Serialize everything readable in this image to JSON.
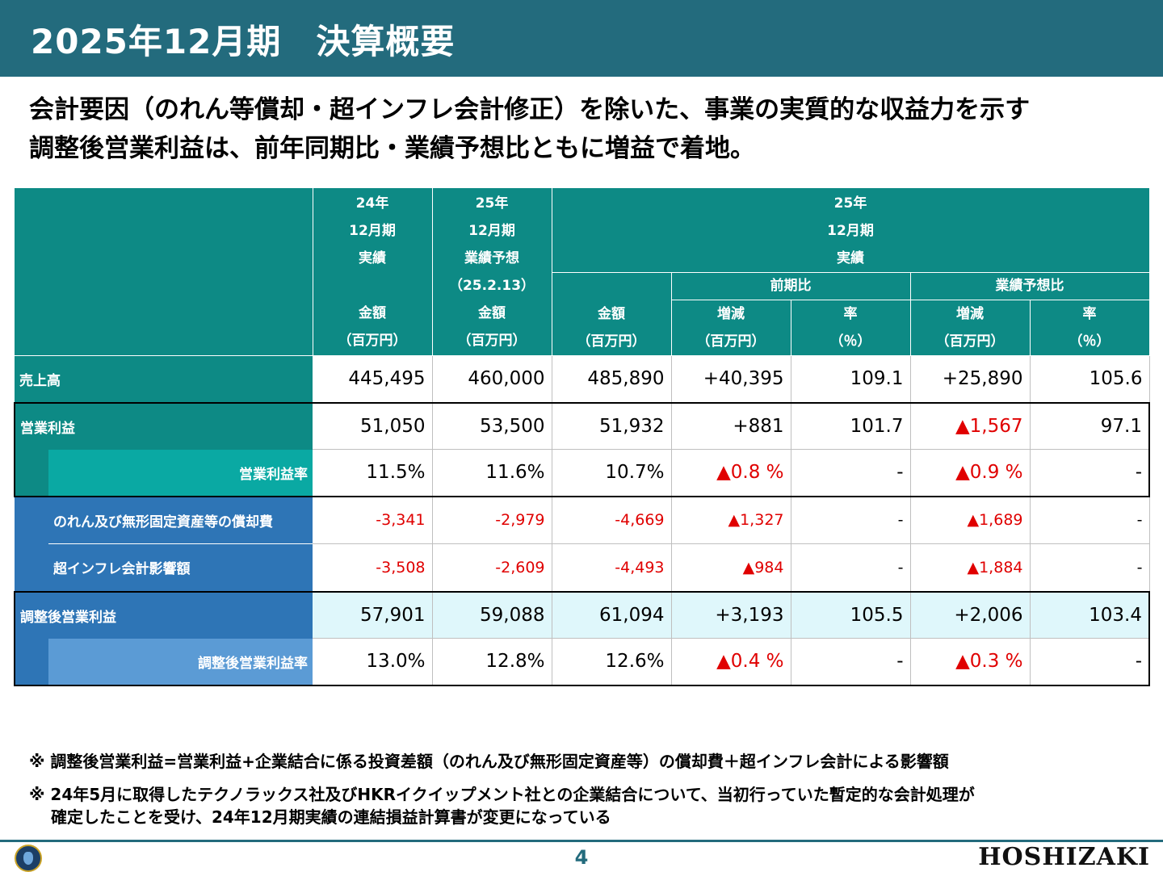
{
  "title": "2025年12月期　決算概要",
  "subtitle": {
    "line1": "会計要因（のれん等償却・超インフレ会計修正）を除いた、事業の実質的な収益力を示す",
    "line2": "調整後営業利益は、前年同期比・業績予想比ともに増益で着地。"
  },
  "table": {
    "headers": {
      "col1": [
        "24年",
        "12月期",
        "実績",
        "",
        "金額",
        "（百万円）"
      ],
      "col2": [
        "25年",
        "12月期",
        "業績予想",
        "（25.2.13）",
        "金額",
        "（百万円）"
      ],
      "group": [
        "25年",
        "12月期",
        "実績"
      ],
      "col3": [
        "金額",
        "（百万円）"
      ],
      "prev_label": "前期比",
      "fcst_label": "業績予想比",
      "change": [
        "増減",
        "（百万円）"
      ],
      "rate": [
        "率",
        "（％）"
      ]
    },
    "rows": {
      "sales": {
        "label": "売上高",
        "values": [
          "445,495",
          "460,000",
          "485,890",
          "+40,395",
          "109.1",
          "+25,890",
          "105.6"
        ]
      },
      "op": {
        "label": "営業利益",
        "values": [
          "51,050",
          "53,500",
          "51,932",
          "+881",
          "101.7",
          "▲1,567",
          "97.1"
        ]
      },
      "op_margin": {
        "label": "営業利益率",
        "values": [
          "11.5%",
          "11.6%",
          "10.7%",
          "▲0.8 %",
          "-",
          "▲0.9 %",
          "-"
        ]
      },
      "amort": {
        "label": "のれん及び無形固定資産等の償却費",
        "values": [
          "-3,341",
          "-2,979",
          "-4,669",
          "▲1,327",
          "-",
          "▲1,689",
          "-"
        ]
      },
      "hyper": {
        "label": "超インフレ会計影響額",
        "values": [
          "-3,508",
          "-2,609",
          "-4,493",
          "▲984",
          "-",
          "▲1,884",
          "-"
        ]
      },
      "adj_op": {
        "label": "調整後営業利益",
        "values": [
          "57,901",
          "59,088",
          "61,094",
          "+3,193",
          "105.5",
          "+2,006",
          "103.4"
        ]
      },
      "adj_margin": {
        "label": "調整後営業利益率",
        "values": [
          "13.0%",
          "12.8%",
          "12.6%",
          "▲0.4 %",
          "-",
          "▲0.3 %",
          "-"
        ]
      }
    }
  },
  "footnotes": {
    "note1": "※ 調整後営業利益=営業利益+企業結合に係る投資差額（のれん及び無形固定資産等）の償却費＋超インフレ会計による影響額",
    "note2a": "※ 24年5月に取得したテクノラックス社及びHKRイクイップメント社との企業結合について、当初行っていた暫定的な会計処理が",
    "note2b": "　 確定したことを受け、24年12月期実績の連結損益計算書が変更になっている"
  },
  "footer": {
    "page_number": "4",
    "brand": "HOSHIZAKI"
  },
  "colors": {
    "title_bar": "#236b7d",
    "header_teal": "#0d8a85",
    "teal_light": "#0aa9a3",
    "blue": "#2e75b6",
    "blue_light": "#5b9bd5",
    "negative": "#e00000",
    "adjusted_row_bg": "#dff7fb"
  }
}
